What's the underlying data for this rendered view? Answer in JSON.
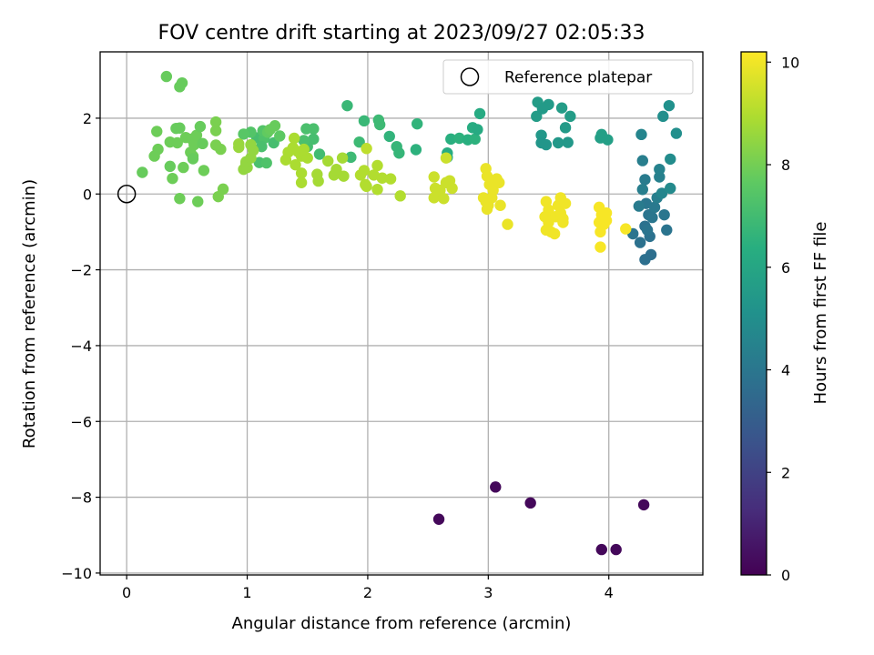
{
  "chart_data": {
    "type": "scatter",
    "title": "FOV centre drift starting at 2023/09/27 02:05:33",
    "xlabel": "Angular distance from reference (arcmin)",
    "ylabel": "Rotation from reference (arcmin)",
    "xlim": [
      -0.22,
      4.78
    ],
    "ylim": [
      -10.05,
      3.75
    ],
    "xticks": [
      0,
      1,
      2,
      3,
      4
    ],
    "yticks": [
      -10,
      -8,
      -6,
      -4,
      -2,
      0,
      2
    ],
    "grid": true,
    "legend": {
      "placement": "upper right",
      "entries": [
        "Reference platepar"
      ]
    },
    "reference_point": {
      "x": 0,
      "y": 0
    },
    "colorbar": {
      "label": "Hours from first FF file",
      "range": [
        0,
        10.2
      ],
      "ticks": [
        0,
        2,
        4,
        6,
        8,
        10
      ],
      "colormap": "viridis"
    },
    "points": [
      {
        "x": 2.59,
        "y": -8.58,
        "c": 0.2
      },
      {
        "x": 3.06,
        "y": -7.73,
        "c": 0.2
      },
      {
        "x": 3.35,
        "y": -8.15,
        "c": 0.2
      },
      {
        "x": 3.94,
        "y": -9.38,
        "c": 0.2
      },
      {
        "x": 4.06,
        "y": -9.38,
        "c": 0.2
      },
      {
        "x": 4.29,
        "y": -8.2,
        "c": 0.2
      },
      {
        "x": 4.27,
        "y": 1.57,
        "c": 4.6
      },
      {
        "x": 4.28,
        "y": 0.88,
        "c": 4.3
      },
      {
        "x": 4.3,
        "y": 0.38,
        "c": 4.2
      },
      {
        "x": 4.28,
        "y": 0.12,
        "c": 4.3
      },
      {
        "x": 4.31,
        "y": -0.25,
        "c": 4.0
      },
      {
        "x": 4.33,
        "y": -0.55,
        "c": 3.9
      },
      {
        "x": 4.3,
        "y": -0.85,
        "c": 3.8
      },
      {
        "x": 4.34,
        "y": -1.12,
        "c": 3.8
      },
      {
        "x": 4.26,
        "y": -1.28,
        "c": 3.8
      },
      {
        "x": 4.35,
        "y": -1.6,
        "c": 3.7
      },
      {
        "x": 4.3,
        "y": -1.73,
        "c": 3.7
      },
      {
        "x": 4.2,
        "y": -1.05,
        "c": 3.9
      },
      {
        "x": 4.38,
        "y": -0.35,
        "c": 4.1
      },
      {
        "x": 4.4,
        "y": -0.1,
        "c": 4.3
      },
      {
        "x": 4.42,
        "y": 0.45,
        "c": 4.4
      },
      {
        "x": 4.42,
        "y": 0.65,
        "c": 4.5
      },
      {
        "x": 4.44,
        "y": 0.02,
        "c": 4.6
      },
      {
        "x": 4.46,
        "y": -0.55,
        "c": 4.0
      },
      {
        "x": 4.48,
        "y": -0.95,
        "c": 3.9
      },
      {
        "x": 4.36,
        "y": -0.62,
        "c": 4.0
      },
      {
        "x": 4.25,
        "y": -0.32,
        "c": 4.2
      },
      {
        "x": 4.32,
        "y": -0.95,
        "c": 3.9
      },
      {
        "x": 4.45,
        "y": 2.05,
        "c": 5.0
      },
      {
        "x": 4.5,
        "y": 2.33,
        "c": 5.1
      },
      {
        "x": 4.51,
        "y": 0.92,
        "c": 4.9
      },
      {
        "x": 4.51,
        "y": 0.15,
        "c": 4.8
      },
      {
        "x": 4.56,
        "y": 1.6,
        "c": 5.0
      },
      {
        "x": 3.41,
        "y": 2.42,
        "c": 5.6
      },
      {
        "x": 3.4,
        "y": 2.05,
        "c": 5.6
      },
      {
        "x": 3.5,
        "y": 2.36,
        "c": 5.5
      },
      {
        "x": 3.45,
        "y": 2.25,
        "c": 5.5
      },
      {
        "x": 3.44,
        "y": 1.55,
        "c": 5.4
      },
      {
        "x": 3.44,
        "y": 1.35,
        "c": 5.3
      },
      {
        "x": 3.48,
        "y": 1.3,
        "c": 5.3
      },
      {
        "x": 3.58,
        "y": 1.35,
        "c": 5.4
      },
      {
        "x": 3.61,
        "y": 2.27,
        "c": 5.6
      },
      {
        "x": 3.64,
        "y": 1.75,
        "c": 5.5
      },
      {
        "x": 3.66,
        "y": 1.36,
        "c": 5.4
      },
      {
        "x": 3.68,
        "y": 2.05,
        "c": 5.6
      },
      {
        "x": 3.94,
        "y": 1.57,
        "c": 5.7
      },
      {
        "x": 3.93,
        "y": 1.48,
        "c": 5.7
      },
      {
        "x": 3.99,
        "y": 1.43,
        "c": 5.7
      },
      {
        "x": 2.24,
        "y": 1.25,
        "c": 6.7
      },
      {
        "x": 2.26,
        "y": 1.08,
        "c": 6.7
      },
      {
        "x": 2.18,
        "y": 1.52,
        "c": 6.6
      },
      {
        "x": 2.41,
        "y": 1.85,
        "c": 6.6
      },
      {
        "x": 2.4,
        "y": 1.17,
        "c": 6.5
      },
      {
        "x": 2.66,
        "y": 1.08,
        "c": 6.3
      },
      {
        "x": 2.66,
        "y": 0.97,
        "c": 6.3
      },
      {
        "x": 2.69,
        "y": 1.45,
        "c": 6.4
      },
      {
        "x": 2.76,
        "y": 1.47,
        "c": 6.5
      },
      {
        "x": 2.83,
        "y": 1.43,
        "c": 6.4
      },
      {
        "x": 2.89,
        "y": 1.45,
        "c": 6.5
      },
      {
        "x": 2.87,
        "y": 1.75,
        "c": 6.3
      },
      {
        "x": 2.91,
        "y": 1.7,
        "c": 6.2
      },
      {
        "x": 2.93,
        "y": 2.12,
        "c": 6.2
      },
      {
        "x": 1.83,
        "y": 2.33,
        "c": 6.8
      },
      {
        "x": 1.97,
        "y": 1.93,
        "c": 6.8
      },
      {
        "x": 2.09,
        "y": 1.95,
        "c": 6.9
      },
      {
        "x": 2.1,
        "y": 1.83,
        "c": 6.9
      },
      {
        "x": 1.93,
        "y": 1.37,
        "c": 6.9
      },
      {
        "x": 1.86,
        "y": 0.97,
        "c": 6.9
      },
      {
        "x": 1.55,
        "y": 1.72,
        "c": 7.2
      },
      {
        "x": 1.49,
        "y": 1.72,
        "c": 7.2
      },
      {
        "x": 1.55,
        "y": 1.45,
        "c": 7.1
      },
      {
        "x": 1.5,
        "y": 1.25,
        "c": 7.1
      },
      {
        "x": 1.47,
        "y": 1.41,
        "c": 7.2
      },
      {
        "x": 1.6,
        "y": 1.05,
        "c": 7.0
      },
      {
        "x": 1.08,
        "y": 1.48,
        "c": 7.1
      },
      {
        "x": 1.16,
        "y": 1.6,
        "c": 7.1
      },
      {
        "x": 1.1,
        "y": 0.83,
        "c": 7.2
      },
      {
        "x": 1.14,
        "y": 1.47,
        "c": 7.3
      },
      {
        "x": 1.12,
        "y": 1.25,
        "c": 7.2
      },
      {
        "x": 1.13,
        "y": 1.67,
        "c": 7.4
      },
      {
        "x": 1.16,
        "y": 0.82,
        "c": 7.3
      },
      {
        "x": 1.22,
        "y": 1.35,
        "c": 7.1
      },
      {
        "x": 1.03,
        "y": 1.63,
        "c": 7.4
      },
      {
        "x": 0.97,
        "y": 1.58,
        "c": 7.5
      },
      {
        "x": 1.27,
        "y": 1.53,
        "c": 7.6
      },
      {
        "x": 1.17,
        "y": 1.63,
        "c": 7.7
      },
      {
        "x": 1.23,
        "y": 1.8,
        "c": 7.8
      },
      {
        "x": 1.19,
        "y": 1.7,
        "c": 7.8
      },
      {
        "x": 0.33,
        "y": 3.1,
        "c": 7.8
      },
      {
        "x": 0.44,
        "y": 2.83,
        "c": 7.8
      },
      {
        "x": 0.46,
        "y": 2.93,
        "c": 7.8
      },
      {
        "x": 0.44,
        "y": 1.74,
        "c": 7.8
      },
      {
        "x": 0.41,
        "y": 1.73,
        "c": 7.8
      },
      {
        "x": 0.25,
        "y": 1.65,
        "c": 7.9
      },
      {
        "x": 0.36,
        "y": 1.37,
        "c": 7.9
      },
      {
        "x": 0.26,
        "y": 1.18,
        "c": 7.9
      },
      {
        "x": 0.23,
        "y": 1.0,
        "c": 7.9
      },
      {
        "x": 0.13,
        "y": 0.57,
        "c": 7.8
      },
      {
        "x": 0.36,
        "y": 0.73,
        "c": 7.8
      },
      {
        "x": 0.38,
        "y": 0.41,
        "c": 7.9
      },
      {
        "x": 0.47,
        "y": 0.7,
        "c": 7.9
      },
      {
        "x": 0.42,
        "y": 1.35,
        "c": 7.9
      },
      {
        "x": 0.53,
        "y": 1.1,
        "c": 7.9
      },
      {
        "x": 0.55,
        "y": 1.0,
        "c": 7.9
      },
      {
        "x": 0.49,
        "y": 1.49,
        "c": 7.9
      },
      {
        "x": 0.54,
        "y": 1.45,
        "c": 7.9
      },
      {
        "x": 0.56,
        "y": 1.3,
        "c": 7.9
      },
      {
        "x": 0.58,
        "y": 1.55,
        "c": 7.9
      },
      {
        "x": 0.63,
        "y": 1.33,
        "c": 7.8
      },
      {
        "x": 0.61,
        "y": 1.78,
        "c": 7.8
      },
      {
        "x": 0.55,
        "y": 0.93,
        "c": 7.8
      },
      {
        "x": 0.64,
        "y": 0.62,
        "c": 7.9
      },
      {
        "x": 0.44,
        "y": -0.12,
        "c": 7.9
      },
      {
        "x": 0.59,
        "y": -0.2,
        "c": 7.9
      },
      {
        "x": 0.74,
        "y": 1.9,
        "c": 8.1
      },
      {
        "x": 0.74,
        "y": 1.67,
        "c": 8.1
      },
      {
        "x": 0.74,
        "y": 1.29,
        "c": 8.1
      },
      {
        "x": 0.78,
        "y": 1.18,
        "c": 8.1
      },
      {
        "x": 0.8,
        "y": 0.13,
        "c": 8.1
      },
      {
        "x": 0.76,
        "y": -0.07,
        "c": 8.1
      },
      {
        "x": 0.93,
        "y": 1.32,
        "c": 8.6
      },
      {
        "x": 0.93,
        "y": 1.23,
        "c": 8.6
      },
      {
        "x": 0.99,
        "y": 0.8,
        "c": 8.4
      },
      {
        "x": 0.97,
        "y": 0.65,
        "c": 8.5
      },
      {
        "x": 1.0,
        "y": 0.7,
        "c": 8.5
      },
      {
        "x": 0.99,
        "y": 0.85,
        "c": 8.5
      },
      {
        "x": 1.03,
        "y": 0.95,
        "c": 8.5
      },
      {
        "x": 1.05,
        "y": 1.15,
        "c": 8.5
      },
      {
        "x": 1.03,
        "y": 1.3,
        "c": 8.5
      },
      {
        "x": 1.39,
        "y": 1.47,
        "c": 8.9
      },
      {
        "x": 1.38,
        "y": 1.22,
        "c": 8.9
      },
      {
        "x": 1.34,
        "y": 1.1,
        "c": 8.9
      },
      {
        "x": 1.32,
        "y": 0.9,
        "c": 8.9
      },
      {
        "x": 1.4,
        "y": 0.77,
        "c": 8.9
      },
      {
        "x": 1.45,
        "y": 1.0,
        "c": 8.9
      },
      {
        "x": 1.45,
        "y": 0.55,
        "c": 8.9
      },
      {
        "x": 1.45,
        "y": 0.3,
        "c": 8.9
      },
      {
        "x": 1.5,
        "y": 0.95,
        "c": 8.9
      },
      {
        "x": 1.42,
        "y": 1.12,
        "c": 8.9
      },
      {
        "x": 1.47,
        "y": 1.18,
        "c": 8.9
      },
      {
        "x": 1.59,
        "y": 0.34,
        "c": 8.8
      },
      {
        "x": 1.58,
        "y": 0.52,
        "c": 8.8
      },
      {
        "x": 1.67,
        "y": 0.87,
        "c": 8.8
      },
      {
        "x": 1.72,
        "y": 0.5,
        "c": 8.8
      },
      {
        "x": 1.74,
        "y": 0.65,
        "c": 8.8
      },
      {
        "x": 1.79,
        "y": 0.95,
        "c": 8.8
      },
      {
        "x": 1.8,
        "y": 0.47,
        "c": 8.8
      },
      {
        "x": 1.94,
        "y": 0.5,
        "c": 9.0
      },
      {
        "x": 1.97,
        "y": 0.62,
        "c": 9.0
      },
      {
        "x": 1.98,
        "y": 0.25,
        "c": 9.0
      },
      {
        "x": 1.99,
        "y": 0.2,
        "c": 9.0
      },
      {
        "x": 2.05,
        "y": 0.5,
        "c": 9.0
      },
      {
        "x": 2.08,
        "y": 0.75,
        "c": 9.0
      },
      {
        "x": 2.08,
        "y": 0.12,
        "c": 9.0
      },
      {
        "x": 2.12,
        "y": 0.42,
        "c": 9.0
      },
      {
        "x": 2.19,
        "y": 0.4,
        "c": 9.0
      },
      {
        "x": 2.27,
        "y": -0.05,
        "c": 9.0
      },
      {
        "x": 1.99,
        "y": 1.2,
        "c": 9.2
      },
      {
        "x": 2.55,
        "y": 0.45,
        "c": 9.4
      },
      {
        "x": 2.56,
        "y": 0.15,
        "c": 9.4
      },
      {
        "x": 2.6,
        "y": 0.1,
        "c": 9.4
      },
      {
        "x": 2.55,
        "y": -0.1,
        "c": 9.4
      },
      {
        "x": 2.63,
        "y": -0.12,
        "c": 9.4
      },
      {
        "x": 2.65,
        "y": 0.3,
        "c": 9.4
      },
      {
        "x": 2.68,
        "y": 0.35,
        "c": 9.4
      },
      {
        "x": 2.7,
        "y": 0.15,
        "c": 9.4
      },
      {
        "x": 2.65,
        "y": 0.95,
        "c": 9.4
      },
      {
        "x": 2.98,
        "y": 0.67,
        "c": 9.9
      },
      {
        "x": 2.99,
        "y": 0.47,
        "c": 9.9
      },
      {
        "x": 3.01,
        "y": 0.25,
        "c": 9.9
      },
      {
        "x": 3.04,
        "y": 0.1,
        "c": 9.9
      },
      {
        "x": 3.03,
        "y": -0.1,
        "c": 9.9
      },
      {
        "x": 2.98,
        "y": -0.2,
        "c": 9.9
      },
      {
        "x": 2.96,
        "y": -0.1,
        "c": 9.9
      },
      {
        "x": 3.0,
        "y": -0.3,
        "c": 9.9
      },
      {
        "x": 2.99,
        "y": -0.4,
        "c": 9.9
      },
      {
        "x": 3.07,
        "y": 0.4,
        "c": 9.9
      },
      {
        "x": 3.09,
        "y": 0.3,
        "c": 9.9
      },
      {
        "x": 3.1,
        "y": -0.3,
        "c": 9.9
      },
      {
        "x": 3.16,
        "y": -0.8,
        "c": 9.9
      },
      {
        "x": 3.48,
        "y": -0.2,
        "c": 10.0
      },
      {
        "x": 3.5,
        "y": -0.42,
        "c": 10.0
      },
      {
        "x": 3.47,
        "y": -0.6,
        "c": 10.0
      },
      {
        "x": 3.5,
        "y": -0.75,
        "c": 10.0
      },
      {
        "x": 3.48,
        "y": -0.95,
        "c": 10.0
      },
      {
        "x": 3.52,
        "y": -1.0,
        "c": 10.0
      },
      {
        "x": 3.55,
        "y": -1.05,
        "c": 10.0
      },
      {
        "x": 3.56,
        "y": -0.6,
        "c": 10.0
      },
      {
        "x": 3.58,
        "y": -0.3,
        "c": 10.0
      },
      {
        "x": 3.6,
        "y": -0.5,
        "c": 10.0
      },
      {
        "x": 3.62,
        "y": -0.65,
        "c": 10.0
      },
      {
        "x": 3.62,
        "y": -0.75,
        "c": 10.0
      },
      {
        "x": 3.64,
        "y": -0.25,
        "c": 10.0
      },
      {
        "x": 3.6,
        "y": -0.1,
        "c": 10.0
      },
      {
        "x": 3.92,
        "y": -0.35,
        "c": 10.1
      },
      {
        "x": 3.92,
        "y": -0.75,
        "c": 10.1
      },
      {
        "x": 3.94,
        "y": -0.55,
        "c": 10.1
      },
      {
        "x": 3.96,
        "y": -0.8,
        "c": 10.1
      },
      {
        "x": 3.98,
        "y": -0.7,
        "c": 10.1
      },
      {
        "x": 3.98,
        "y": -0.5,
        "c": 10.1
      },
      {
        "x": 3.93,
        "y": -1.4,
        "c": 10.1
      },
      {
        "x": 3.93,
        "y": -1.0,
        "c": 10.1
      },
      {
        "x": 4.14,
        "y": -0.92,
        "c": 10.1
      }
    ]
  }
}
